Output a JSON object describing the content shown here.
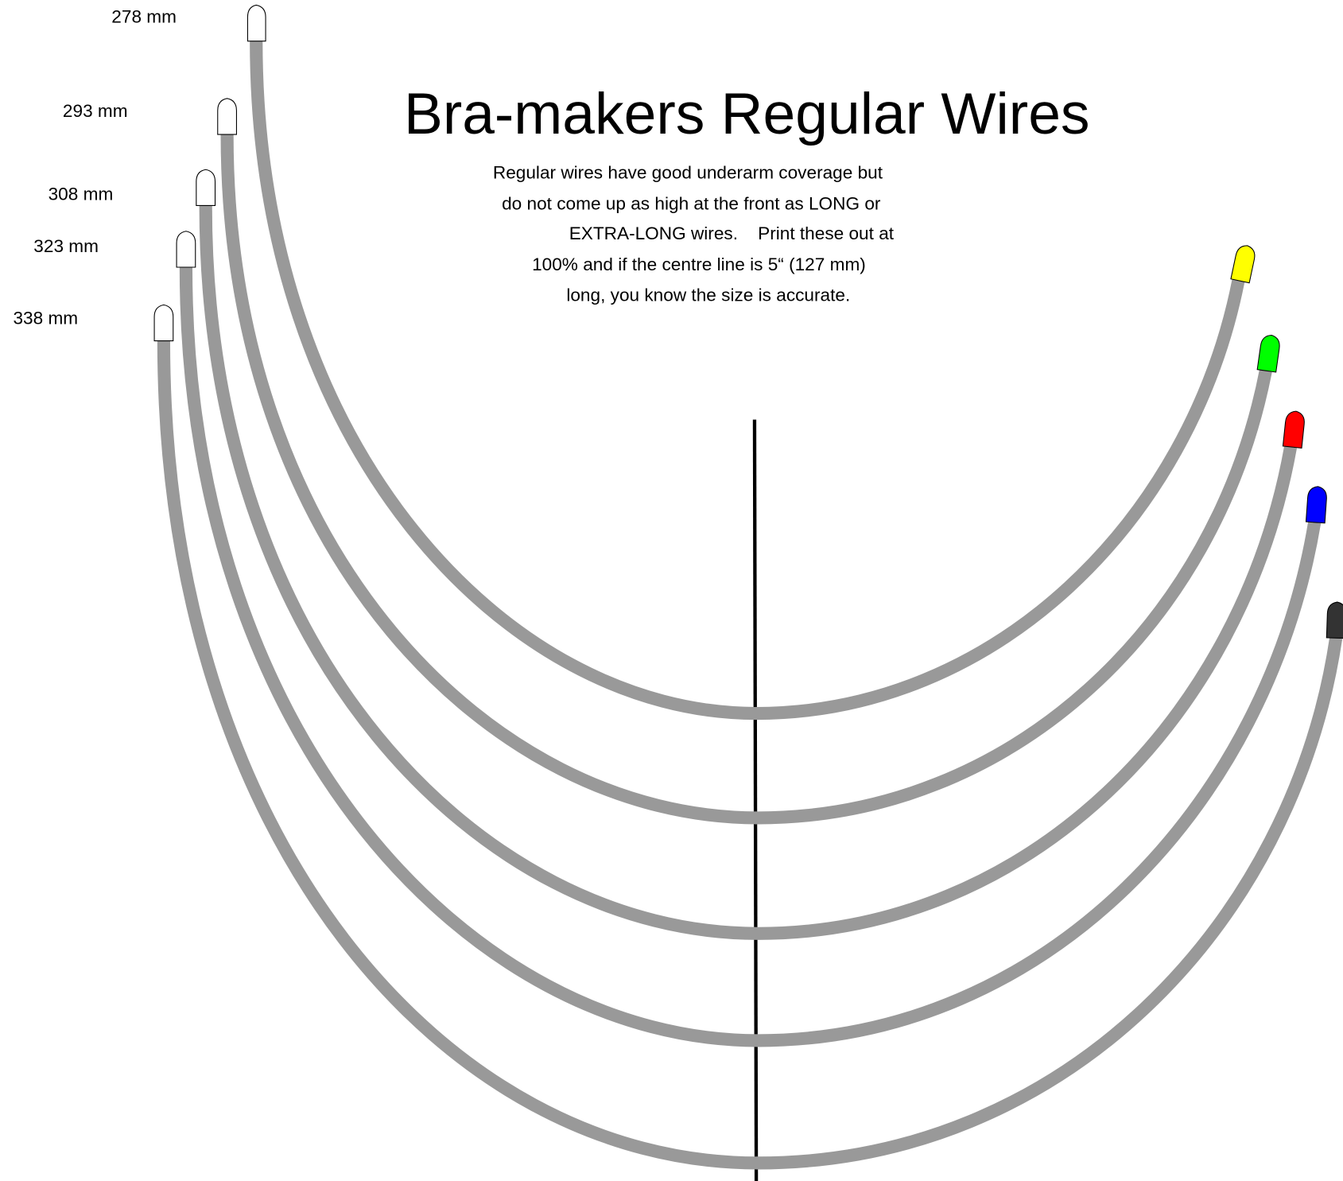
{
  "title": "Bra-makers Regular Wires",
  "description": [
    "Regular wires have good underarm coverage but",
    "do not come up as high at the front as LONG or",
    "EXTRA-LONG wires.    Print these out at",
    "100% and if the centre line is 5“ (127 mm)",
    "long, you know the size is accurate."
  ],
  "wires": [
    {
      "label": "278 mm"
    },
    {
      "label": "293 mm"
    },
    {
      "label": "308 mm"
    },
    {
      "label": "323 mm"
    },
    {
      "label": "338 mm"
    }
  ]
}
